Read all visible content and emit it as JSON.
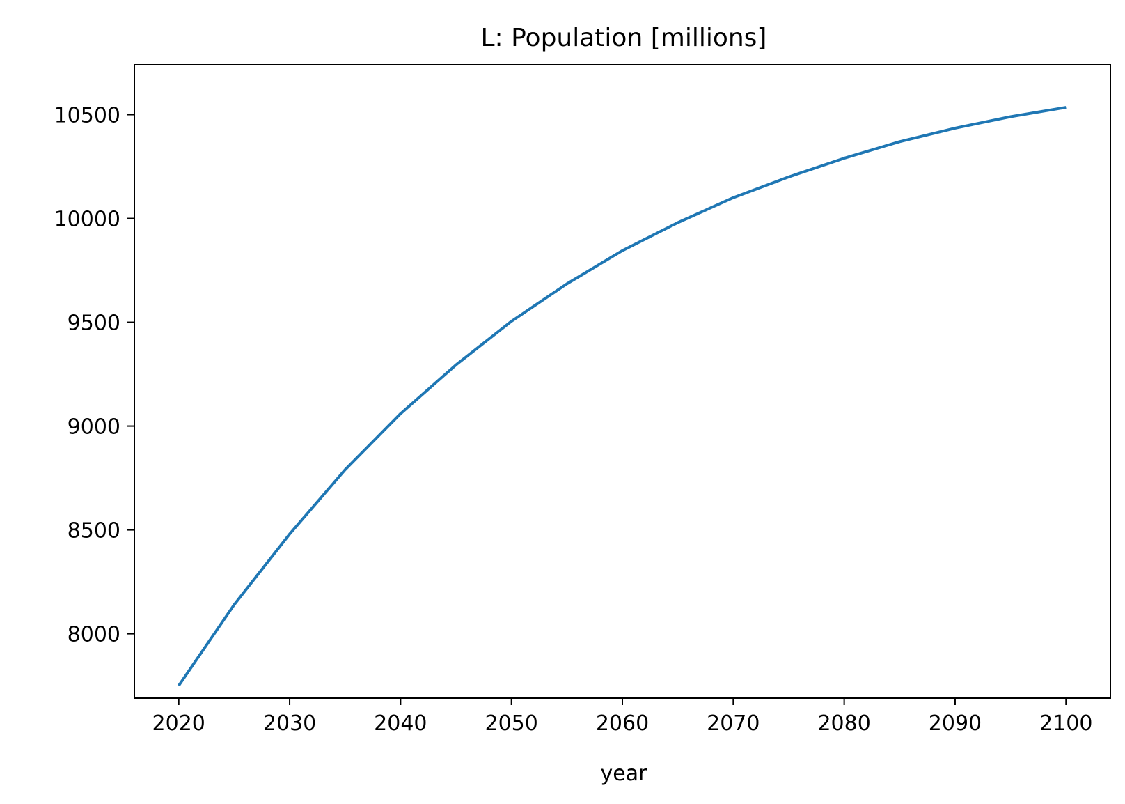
{
  "chart_data": {
    "type": "line",
    "title": "L: Population [millions]",
    "xlabel": "year",
    "ylabel": "",
    "xlim": [
      2016,
      2104
    ],
    "ylim": [
      7690,
      10740
    ],
    "xticks": [
      2020,
      2030,
      2040,
      2050,
      2060,
      2070,
      2080,
      2090,
      2100
    ],
    "yticks": [
      8000,
      8500,
      9000,
      9500,
      10000,
      10500
    ],
    "grid": false,
    "series": [
      {
        "color": "#1f77b4",
        "x": [
          2020,
          2025,
          2030,
          2035,
          2040,
          2045,
          2050,
          2055,
          2060,
          2065,
          2070,
          2075,
          2080,
          2085,
          2090,
          2095,
          2100
        ],
        "y": [
          7750,
          8140,
          8480,
          8790,
          9060,
          9295,
          9505,
          9685,
          9845,
          9980,
          10100,
          10200,
          10290,
          10370,
          10435,
          10490,
          10535
        ]
      }
    ]
  }
}
